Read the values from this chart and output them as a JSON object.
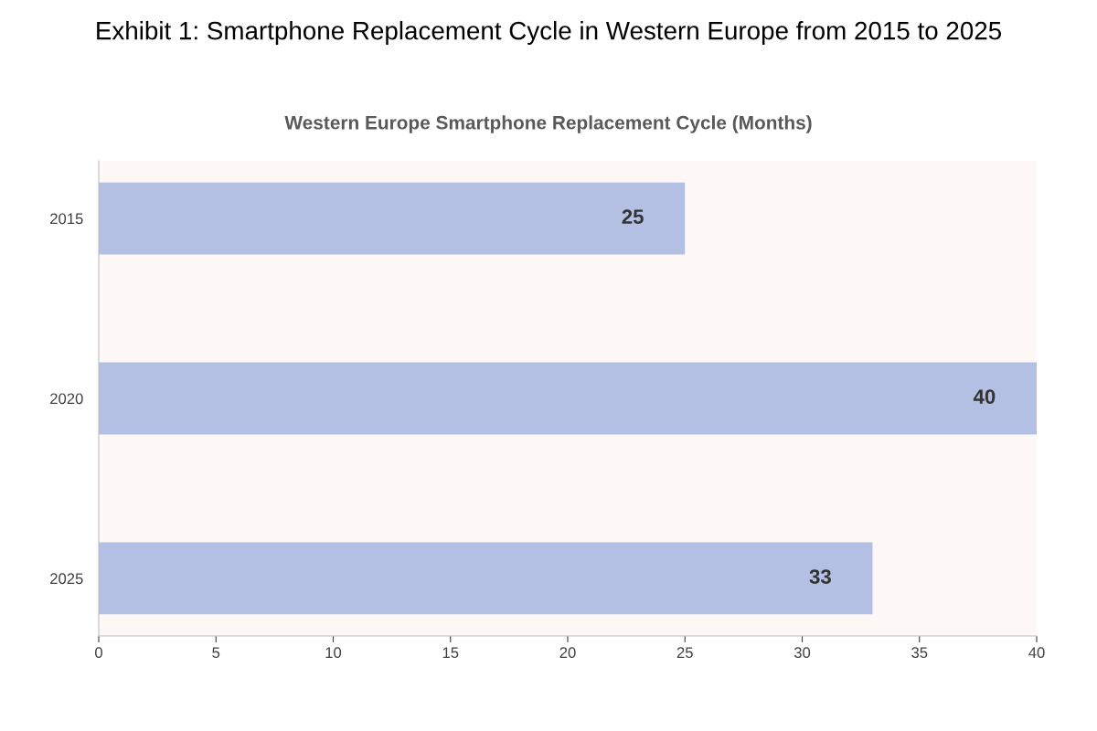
{
  "chart_data": {
    "type": "bar",
    "orientation": "horizontal",
    "title": "Exhibit 1: Smartphone Replacement Cycle in Western Europe from 2015 to 2025",
    "subtitle": "Western Europe Smartphone Replacement Cycle (Months)",
    "categories": [
      "2015",
      "2020",
      "2025"
    ],
    "values": [
      25,
      40,
      33
    ],
    "color": "#b3c0e4",
    "xlim": [
      0,
      40
    ],
    "xticks": [
      0,
      5,
      10,
      15,
      20,
      25,
      30,
      35,
      40
    ],
    "data_labels": true,
    "grid": false,
    "legend": false
  }
}
